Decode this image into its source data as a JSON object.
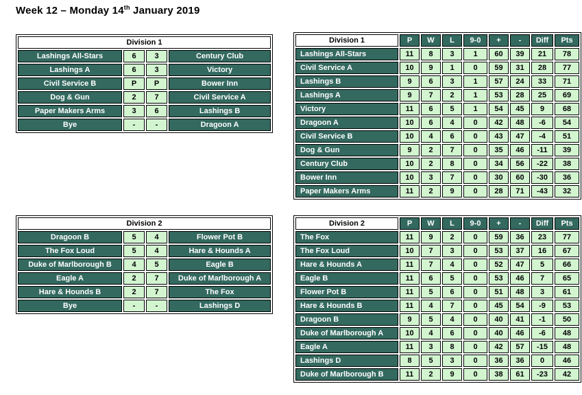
{
  "title": {
    "part1": "Week 12 – Monday 14",
    "superscript": "th",
    "part2": " January 2019"
  },
  "colors": {
    "teal": "#33695F",
    "light_green": "#D2F5D0",
    "border": "#000000",
    "header_background": "#FFFFFF"
  },
  "fixtures": [
    {
      "division": "Division 1",
      "rows": [
        {
          "home": "Lashings All-Stars",
          "home_score": "6",
          "away_score": "3",
          "away": "Century Club"
        },
        {
          "home": "Lashings A",
          "home_score": "6",
          "away_score": "3",
          "away": "Victory"
        },
        {
          "home": "Civil Service B",
          "home_score": "P",
          "away_score": "P",
          "away": "Bower Inn"
        },
        {
          "home": "Dog & Gun",
          "home_score": "2",
          "away_score": "7",
          "away": "Civil Service A"
        },
        {
          "home": "Paper Makers Arms",
          "home_score": "3",
          "away_score": "6",
          "away": "Lashings B"
        },
        {
          "home": "Bye",
          "home_score": "-",
          "away_score": "-",
          "away": "Dragoon A"
        }
      ]
    },
    {
      "division": "Division 2",
      "rows": [
        {
          "home": "Dragoon B",
          "home_score": "5",
          "away_score": "4",
          "away": "Flower Pot B"
        },
        {
          "home": "The Fox Loud",
          "home_score": "5",
          "away_score": "4",
          "away": "Hare & Hounds A"
        },
        {
          "home": "Duke of Marlborough B",
          "home_score": "4",
          "away_score": "5",
          "away": "Eagle B"
        },
        {
          "home": "Eagle A",
          "home_score": "2",
          "away_score": "7",
          "away": "Duke of Marlborough A"
        },
        {
          "home": "Hare & Hounds B",
          "home_score": "2",
          "away_score": "7",
          "away": "The Fox"
        },
        {
          "home": "Bye",
          "home_score": "-",
          "away_score": "-",
          "away": "Lashings D"
        }
      ]
    }
  ],
  "standings": [
    {
      "division": "Division 1",
      "columns": [
        "P",
        "W",
        "L",
        "9-0",
        "+",
        "-",
        "Diff",
        "Pts"
      ],
      "rows": [
        {
          "team": "Lashings All-Stars",
          "values": [
            "11",
            "8",
            "3",
            "1",
            "60",
            "39",
            "21",
            "78"
          ]
        },
        {
          "team": "Civil Service A",
          "values": [
            "10",
            "9",
            "1",
            "0",
            "59",
            "31",
            "28",
            "77"
          ]
        },
        {
          "team": "Lashings B",
          "values": [
            "9",
            "6",
            "3",
            "1",
            "57",
            "24",
            "33",
            "71"
          ]
        },
        {
          "team": "Lashings A",
          "values": [
            "9",
            "7",
            "2",
            "1",
            "53",
            "28",
            "25",
            "69"
          ]
        },
        {
          "team": "Victory",
          "values": [
            "11",
            "6",
            "5",
            "1",
            "54",
            "45",
            "9",
            "68"
          ]
        },
        {
          "team": "Dragoon A",
          "values": [
            "10",
            "6",
            "4",
            "0",
            "42",
            "48",
            "-6",
            "54"
          ]
        },
        {
          "team": "Civil Service B",
          "values": [
            "10",
            "4",
            "6",
            "0",
            "43",
            "47",
            "-4",
            "51"
          ]
        },
        {
          "team": "Dog & Gun",
          "values": [
            "9",
            "2",
            "7",
            "0",
            "35",
            "46",
            "-11",
            "39"
          ]
        },
        {
          "team": "Century Club",
          "values": [
            "10",
            "2",
            "8",
            "0",
            "34",
            "56",
            "-22",
            "38"
          ]
        },
        {
          "team": "Bower Inn",
          "values": [
            "10",
            "3",
            "7",
            "0",
            "30",
            "60",
            "-30",
            "36"
          ]
        },
        {
          "team": "Paper Makers Arms",
          "values": [
            "11",
            "2",
            "9",
            "0",
            "28",
            "71",
            "-43",
            "32"
          ]
        }
      ]
    },
    {
      "division": "Division 2",
      "columns": [
        "P",
        "W",
        "L",
        "9-0",
        "+",
        "-",
        "Diff",
        "Pts"
      ],
      "rows": [
        {
          "team": "The Fox",
          "values": [
            "11",
            "9",
            "2",
            "0",
            "59",
            "36",
            "23",
            "77"
          ]
        },
        {
          "team": "The Fox Loud",
          "values": [
            "10",
            "7",
            "3",
            "0",
            "53",
            "37",
            "16",
            "67"
          ]
        },
        {
          "team": "Hare & Hounds A",
          "values": [
            "11",
            "7",
            "4",
            "0",
            "52",
            "47",
            "5",
            "66"
          ]
        },
        {
          "team": "Eagle B",
          "values": [
            "11",
            "6",
            "5",
            "0",
            "53",
            "46",
            "7",
            "65"
          ]
        },
        {
          "team": "Flower Pot B",
          "values": [
            "11",
            "5",
            "6",
            "0",
            "51",
            "48",
            "3",
            "61"
          ]
        },
        {
          "team": "Hare & Hounds B",
          "values": [
            "11",
            "4",
            "7",
            "0",
            "45",
            "54",
            "-9",
            "53"
          ]
        },
        {
          "team": "Dragoon B",
          "values": [
            "9",
            "5",
            "4",
            "0",
            "40",
            "41",
            "-1",
            "50"
          ]
        },
        {
          "team": "Duke of Marlborough A",
          "values": [
            "10",
            "4",
            "6",
            "0",
            "40",
            "46",
            "-6",
            "48"
          ]
        },
        {
          "team": "Eagle A",
          "values": [
            "11",
            "3",
            "8",
            "0",
            "42",
            "57",
            "-15",
            "48"
          ]
        },
        {
          "team": "Lashings D",
          "values": [
            "8",
            "5",
            "3",
            "0",
            "36",
            "36",
            "0",
            "46"
          ]
        },
        {
          "team": "Duke of Marlborough B",
          "values": [
            "11",
            "2",
            "9",
            "0",
            "38",
            "61",
            "-23",
            "42"
          ]
        }
      ]
    }
  ]
}
